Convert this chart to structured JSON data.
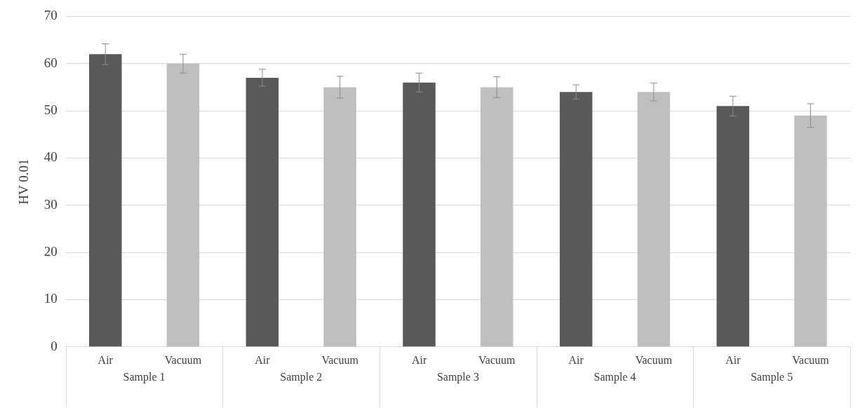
{
  "chart_data": {
    "type": "bar",
    "ylabel": "HV 0.01",
    "categories": [
      "Sample 1",
      "Sample 2",
      "Sample 3",
      "Sample 4",
      "Sample 5"
    ],
    "series": [
      {
        "name": "Air",
        "color": "#595959",
        "values": [
          62,
          57,
          56,
          54,
          51
        ],
        "errors": [
          2.2,
          1.8,
          2,
          1.5,
          2.1
        ]
      },
      {
        "name": "Vacuum",
        "color": "#bfbfbf",
        "values": [
          60,
          55,
          55,
          54,
          49
        ],
        "errors": [
          2,
          2.3,
          2.2,
          1.9,
          2.5
        ]
      }
    ],
    "ylim": [
      0,
      70
    ],
    "yticks": [
      0,
      10,
      20,
      30,
      40,
      50,
      60,
      70
    ],
    "grid": "y",
    "legend": false
  }
}
